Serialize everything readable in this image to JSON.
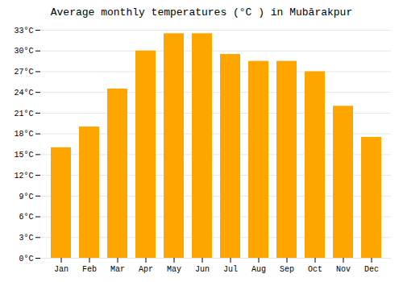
{
  "chart_data": {
    "type": "bar",
    "title": "Average monthly temperatures (°C ) in Mubārakpur",
    "categories": [
      "Jan",
      "Feb",
      "Mar",
      "Apr",
      "May",
      "Jun",
      "Jul",
      "Aug",
      "Sep",
      "Oct",
      "Nov",
      "Dec"
    ],
    "values": [
      16,
      19,
      24.5,
      30,
      32.5,
      32.5,
      29.5,
      28.5,
      28.5,
      27,
      22,
      17.5
    ],
    "color": "#FFA500",
    "ylim": [
      0,
      33
    ],
    "yticks": [
      {
        "value": 0,
        "label": "0°C"
      },
      {
        "value": 3,
        "label": "3°C"
      },
      {
        "value": 6,
        "label": "6°C"
      },
      {
        "value": 9,
        "label": "9°C"
      },
      {
        "value": 12,
        "label": "12°C"
      },
      {
        "value": 15,
        "label": "15°C"
      },
      {
        "value": 18,
        "label": "18°C"
      },
      {
        "value": 21,
        "label": "21°C"
      },
      {
        "value": 24,
        "label": "24°C"
      },
      {
        "value": 27,
        "label": "27°C"
      },
      {
        "value": 30,
        "label": "30°C"
      },
      {
        "value": 33,
        "label": "33°C"
      }
    ],
    "grid": true
  }
}
